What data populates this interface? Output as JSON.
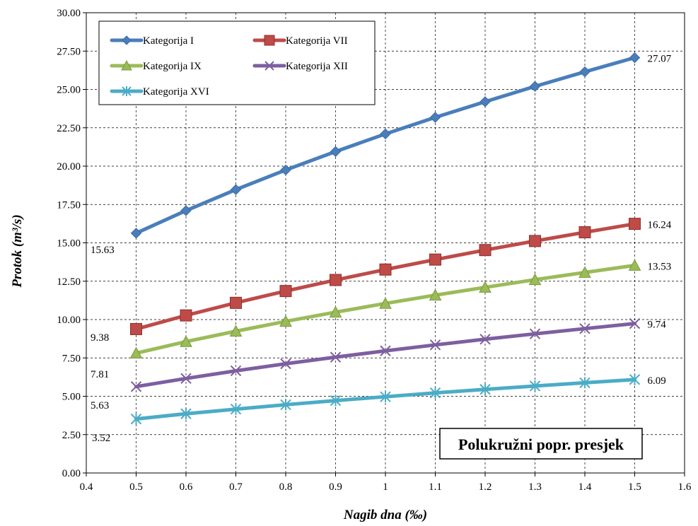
{
  "chart_data": {
    "type": "line",
    "title": "",
    "xlabel": "Nagib dna (‰)",
    "ylabel": "Protok (m³/s)",
    "xlim": [
      0.4,
      1.6
    ],
    "ylim": [
      0,
      30
    ],
    "x_ticks": [
      "0.4",
      "0.5",
      "0.6",
      "0.7",
      "0.8",
      "0.9",
      "1",
      "1.1",
      "1.2",
      "1.3",
      "1.4",
      "1.5",
      "1.6"
    ],
    "y_ticks": [
      "0.00",
      "2.50",
      "5.00",
      "7.50",
      "10.00",
      "12.50",
      "15.00",
      "17.50",
      "20.00",
      "22.50",
      "25.00",
      "27.50",
      "30.00"
    ],
    "grid": true,
    "legend_position": "top-left",
    "annotation": "Polukružni popr. presjek",
    "x": [
      0.5,
      0.6,
      0.7,
      0.8,
      0.9,
      1.0,
      1.1,
      1.2,
      1.3,
      1.4,
      1.5
    ],
    "series": [
      {
        "name": "Kategorija I",
        "color": "#4a7ebb",
        "marker": "diamond",
        "values": [
          15.63,
          17.1,
          18.47,
          19.75,
          20.95,
          22.1,
          23.18,
          24.2,
          25.2,
          26.15,
          27.07
        ],
        "start_label": "15.63",
        "end_label": "27.07"
      },
      {
        "name": "Kategorija VII",
        "color": "#be4b48",
        "marker": "square",
        "values": [
          9.38,
          10.27,
          11.09,
          11.86,
          12.58,
          13.26,
          13.91,
          14.53,
          15.12,
          15.69,
          16.24
        ],
        "start_label": "9.38",
        "end_label": "16.24"
      },
      {
        "name": "Kategorija IX",
        "color": "#9bbb59",
        "marker": "triangle",
        "values": [
          7.81,
          8.56,
          9.24,
          9.88,
          10.48,
          11.05,
          11.59,
          12.1,
          12.6,
          13.07,
          13.53
        ],
        "start_label": "7.81",
        "end_label": "13.53"
      },
      {
        "name": "Kategorija XII",
        "color": "#7d5fa0",
        "marker": "x",
        "values": [
          5.63,
          6.16,
          6.66,
          7.12,
          7.55,
          7.96,
          8.35,
          8.72,
          9.07,
          9.41,
          9.74
        ],
        "start_label": "5.63",
        "end_label": "9.74"
      },
      {
        "name": "Kategorija XVI",
        "color": "#4bacc6",
        "marker": "star",
        "values": [
          3.52,
          3.86,
          4.16,
          4.45,
          4.72,
          4.97,
          5.22,
          5.45,
          5.67,
          5.88,
          6.09
        ],
        "start_label": "3.52",
        "end_label": "6.09"
      }
    ]
  }
}
